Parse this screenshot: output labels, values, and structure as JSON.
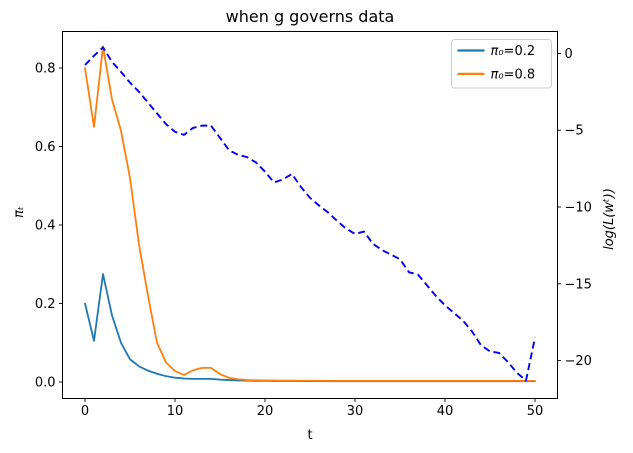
{
  "chart_data": {
    "type": "line",
    "title": "when g governs data",
    "xlabel": "t",
    "ylabel_left": "πₜ",
    "ylabel_right": "log(L(wᵗ))",
    "grid": false,
    "xlim": [
      -2.5,
      52.5
    ],
    "ylim_left": [
      -0.042,
      0.893
    ],
    "ylim_right": [
      -22.47,
      1.43
    ],
    "x_ticks": {
      "values": [
        0,
        10,
        20,
        30,
        40,
        50
      ],
      "labels": [
        "0",
        "10",
        "20",
        "30",
        "40",
        "50"
      ]
    },
    "y_ticks_left": {
      "values": [
        0.0,
        0.2,
        0.4,
        0.6,
        0.8
      ],
      "labels": [
        "0.0",
        "0.2",
        "0.4",
        "0.6",
        "0.8"
      ]
    },
    "y_ticks_right": {
      "values": [
        0,
        -5,
        -10,
        -15,
        -20
      ],
      "labels": [
        "0",
        "−5",
        "−10",
        "−15",
        "−20"
      ]
    },
    "legend": {
      "position": "upper right",
      "items": [
        {
          "label": "π₀=0.2",
          "color": "#1f77b4"
        },
        {
          "label": "π₀=0.8",
          "color": "#ff7f0e"
        }
      ]
    },
    "x": [
      0,
      1,
      2,
      3,
      4,
      5,
      6,
      7,
      8,
      9,
      10,
      11,
      12,
      13,
      14,
      15,
      16,
      17,
      18,
      19,
      20,
      21,
      22,
      23,
      24,
      25,
      26,
      27,
      28,
      29,
      30,
      31,
      32,
      33,
      34,
      35,
      36,
      37,
      38,
      39,
      40,
      41,
      42,
      43,
      44,
      45,
      46,
      47,
      48,
      49,
      50
    ],
    "series": [
      {
        "key": "pi0-0-2",
        "name": "π₀=0.2",
        "axis": "left",
        "color": "#1f77b4",
        "style": "solid",
        "values": [
          0.2,
          0.105,
          0.275,
          0.17,
          0.1,
          0.058,
          0.04,
          0.029,
          0.021,
          0.015,
          0.011,
          0.009,
          0.008,
          0.008,
          0.008,
          0.006,
          0.005,
          0.004,
          0.0035,
          0.003,
          0.003,
          0.0028,
          0.0026,
          0.0025,
          0.0024,
          0.0023,
          0.0022,
          0.0021,
          0.002,
          0.002,
          0.002,
          0.002,
          0.002,
          0.002,
          0.002,
          0.002,
          0.002,
          0.002,
          0.002,
          0.002,
          0.002,
          0.002,
          0.002,
          0.002,
          0.002,
          0.002,
          0.002,
          0.002,
          0.002,
          0.002,
          0.002
        ]
      },
      {
        "key": "pi0-0-8",
        "name": "π₀=0.8",
        "axis": "left",
        "color": "#ff7f0e",
        "style": "solid",
        "values": [
          0.8,
          0.65,
          0.855,
          0.72,
          0.64,
          0.52,
          0.35,
          0.22,
          0.1,
          0.05,
          0.028,
          0.018,
          0.03,
          0.036,
          0.036,
          0.02,
          0.011,
          0.007,
          0.005,
          0.0045,
          0.004,
          0.0038,
          0.0036,
          0.0034,
          0.0033,
          0.0032,
          0.0031,
          0.003,
          0.003,
          0.003,
          0.003,
          0.003,
          0.003,
          0.003,
          0.003,
          0.003,
          0.003,
          0.003,
          0.003,
          0.003,
          0.003,
          0.003,
          0.003,
          0.003,
          0.003,
          0.003,
          0.003,
          0.003,
          0.003,
          0.003,
          0.003
        ]
      },
      {
        "key": "log-likelihood",
        "name": "log(L(wᵗ))",
        "axis": "right",
        "color": "#0000ee",
        "style": "dashed",
        "values": [
          -0.75,
          -0.15,
          0.4,
          -0.55,
          -1.2,
          -1.9,
          -2.5,
          -3.2,
          -3.9,
          -4.6,
          -5.1,
          -5.3,
          -4.85,
          -4.7,
          -4.7,
          -5.5,
          -6.3,
          -6.6,
          -6.75,
          -7.1,
          -7.7,
          -8.4,
          -8.2,
          -7.85,
          -8.7,
          -9.4,
          -9.9,
          -10.35,
          -10.9,
          -11.4,
          -11.75,
          -11.6,
          -12.4,
          -12.8,
          -13.1,
          -13.4,
          -14.25,
          -14.4,
          -15.1,
          -15.8,
          -16.4,
          -16.9,
          -17.4,
          -18.1,
          -19.0,
          -19.4,
          -19.5,
          -20.1,
          -20.8,
          -21.3,
          -18.5
        ]
      }
    ]
  }
}
